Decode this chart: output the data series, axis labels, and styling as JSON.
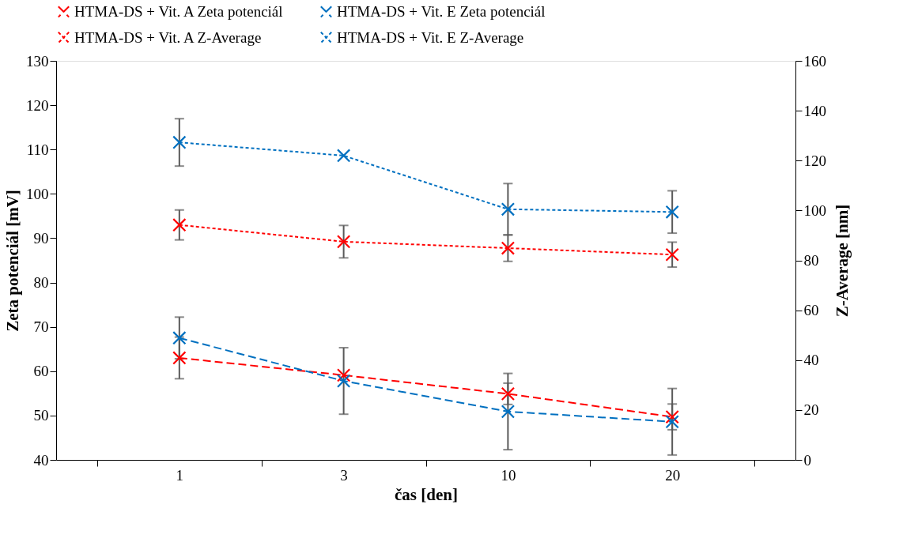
{
  "chart_data": {
    "type": "line",
    "xlabel": "čas [den]",
    "ylabel": "Zeta potenciál [mV]",
    "y2label": "Z-Average [nm]",
    "categories": [
      "1",
      "3",
      "10",
      "20"
    ],
    "ylim": [
      40,
      130
    ],
    "yticks": [
      40,
      50,
      60,
      70,
      80,
      90,
      100,
      110,
      120,
      130
    ],
    "y2lim": [
      0,
      160
    ],
    "y2ticks": [
      0,
      20,
      40,
      60,
      80,
      100,
      120,
      140,
      160
    ],
    "legend": "top",
    "grid": false,
    "series": [
      {
        "name": "HTMA-DS + Vit. A Zeta potenciál",
        "color": "#ff0000",
        "values": [
          63.0,
          59.1,
          54.9,
          49.7
        ],
        "errors": [
          4.7,
          null,
          2.4,
          2.9
        ],
        "marker": "cross",
        "line_style": "dashed"
      },
      {
        "name": "HTMA-DS + Vit. E Zeta potenciál",
        "color": "#0070c0",
        "values": [
          67.5,
          57.8,
          50.9,
          48.6
        ],
        "errors": [
          4.7,
          7.5,
          8.6,
          7.5
        ],
        "marker": "cross",
        "line_style": "dashed"
      },
      {
        "name": "HTMA-DS + Vit. A Z-Average",
        "color": "#ff0000",
        "values": [
          94.2,
          87.5,
          84.9,
          82.3
        ],
        "errors": [
          6.0,
          6.5,
          5.3,
          5.0
        ],
        "marker": "cross",
        "line_style": "dotted",
        "axis": "y2"
      },
      {
        "name": "HTMA-DS + Vit. E Z-Average",
        "color": "#0070c0",
        "values": [
          127.3,
          122.0,
          100.5,
          99.4
        ],
        "errors": [
          9.5,
          null,
          10.3,
          8.5
        ],
        "marker": "cross",
        "line_style": "dotted",
        "axis": "y2"
      }
    ]
  }
}
